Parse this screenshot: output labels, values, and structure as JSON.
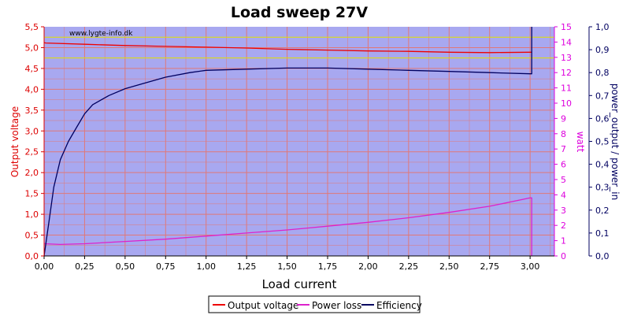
{
  "chart_data": {
    "type": "line",
    "title": "Load sweep 27V",
    "watermark": "www.lygte-info.dk",
    "xlabel": "Load current",
    "ylabel_left": "Output voltage",
    "ylabel_right1": "watt",
    "ylabel_right2": "power_output / power_in",
    "xlim": [
      0,
      3.15
    ],
    "x_ticks": [
      "0,00",
      "0,25",
      "0,50",
      "0,75",
      "1,00",
      "1,25",
      "1,50",
      "1,75",
      "2,00",
      "2,25",
      "2,50",
      "2,75",
      "3,00"
    ],
    "x_tick_values": [
      0,
      0.25,
      0.5,
      0.75,
      1,
      1.25,
      1.5,
      1.75,
      2,
      2.25,
      2.5,
      2.75,
      3
    ],
    "y_left_lim": [
      0,
      5.5
    ],
    "y_left_ticks": [
      "0,0",
      "0,5",
      "1,0",
      "1,5",
      "2,0",
      "2,5",
      "3,0",
      "3,5",
      "4,0",
      "4,5",
      "5,0",
      "5,5"
    ],
    "y_left_tick_values": [
      0,
      0.5,
      1,
      1.5,
      2,
      2.5,
      3,
      3.5,
      4,
      4.5,
      5,
      5.5
    ],
    "y_right1_lim": [
      0,
      15
    ],
    "y_right1_ticks": [
      "0",
      "1",
      "2",
      "3",
      "4",
      "5",
      "6",
      "7",
      "8",
      "9",
      "10",
      "11",
      "12",
      "13",
      "14",
      "15"
    ],
    "y_right1_tick_values": [
      0,
      1,
      2,
      3,
      4,
      5,
      6,
      7,
      8,
      9,
      10,
      11,
      12,
      13,
      14,
      15
    ],
    "y_right2_lim": [
      0,
      1
    ],
    "y_right2_ticks": [
      "0,0",
      "0,1",
      "0,2",
      "0,3",
      "0,4",
      "0,5",
      "0,6",
      "0,7",
      "0,8",
      "0,9",
      "1,0"
    ],
    "y_right2_tick_values": [
      0,
      0.1,
      0.2,
      0.3,
      0.4,
      0.5,
      0.6,
      0.7,
      0.8,
      0.9,
      1.0
    ],
    "reference_lines": [
      5.25,
      4.75
    ],
    "grid": true,
    "legend_position": "bottom-center",
    "colors": {
      "plot_bg": "#a8a8f0",
      "grid": "#e07878",
      "voltage": "#ee0000",
      "power_loss": "#dd22cc",
      "efficiency": "#000060",
      "reference": "#e0e000",
      "left_axis": "#dd0000",
      "right_axis1": "#dd00dd",
      "right_axis2": "#000060"
    },
    "series": [
      {
        "name": "Output voltage",
        "axis": "left",
        "x": [
          0,
          0.01,
          0.25,
          0.5,
          0.75,
          1,
          1.25,
          1.5,
          1.75,
          2,
          2.25,
          2.5,
          2.75,
          3,
          3.01
        ],
        "y": [
          5.12,
          5.11,
          5.08,
          5.05,
          5.03,
          5.01,
          4.99,
          4.96,
          4.94,
          4.92,
          4.91,
          4.89,
          4.88,
          4.89,
          4.89
        ]
      },
      {
        "name": "Power loss",
        "axis": "right1",
        "x": [
          0,
          0.1,
          0.25,
          0.5,
          0.75,
          1,
          1.25,
          1.5,
          1.75,
          2,
          2.25,
          2.5,
          2.75,
          3,
          3.01,
          3.01
        ],
        "y": [
          0.8,
          0.75,
          0.8,
          0.95,
          1.1,
          1.3,
          1.5,
          1.7,
          1.95,
          2.2,
          2.5,
          2.85,
          3.25,
          3.8,
          3.8,
          0
        ]
      },
      {
        "name": "Efficiency",
        "axis": "right2",
        "x": [
          0,
          0.03,
          0.06,
          0.1,
          0.15,
          0.2,
          0.25,
          0.3,
          0.4,
          0.5,
          0.6,
          0.75,
          0.9,
          1,
          1.25,
          1.5,
          1.75,
          2,
          2.25,
          2.5,
          2.75,
          3,
          3.01,
          3.01
        ],
        "y": [
          0,
          0.15,
          0.3,
          0.42,
          0.5,
          0.56,
          0.62,
          0.66,
          0.7,
          0.73,
          0.75,
          0.78,
          0.8,
          0.81,
          0.815,
          0.82,
          0.82,
          0.815,
          0.81,
          0.805,
          0.8,
          0.795,
          0.795,
          1.0
        ]
      }
    ]
  }
}
